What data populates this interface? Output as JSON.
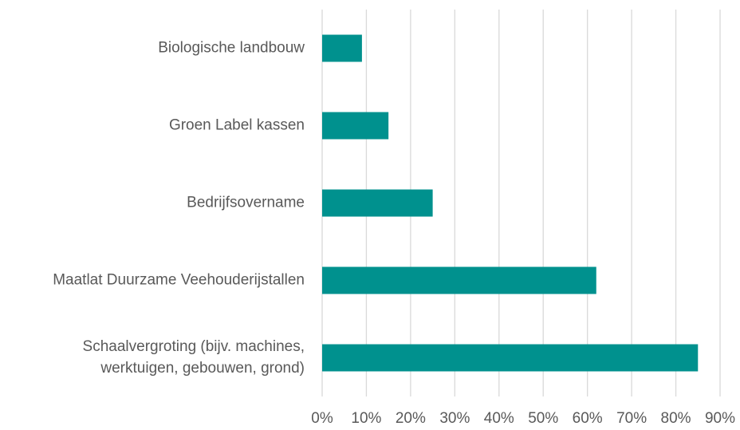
{
  "chart_data": {
    "type": "hbar",
    "categories": [
      "Biologische landbouw",
      "Groen Label kassen",
      "Bedrijfsovername",
      "Maatlat Duurzame Veehouderijstallen",
      [
        "Schaalvergroting (bijv. machines,",
        "werktuigen, gebouwen, grond)"
      ]
    ],
    "values": [
      9,
      15,
      25,
      62,
      85
    ],
    "color": "#00918e",
    "xlim": [
      0,
      90
    ],
    "xticks": [
      {
        "value": 0,
        "label": "0%"
      },
      {
        "value": 10,
        "label": "10%"
      },
      {
        "value": 20,
        "label": "20%"
      },
      {
        "value": 30,
        "label": "30%"
      },
      {
        "value": 40,
        "label": "40%"
      },
      {
        "value": 50,
        "label": "50%"
      },
      {
        "value": 60,
        "label": "60%"
      },
      {
        "value": 70,
        "label": "70%"
      },
      {
        "value": 80,
        "label": "80%"
      },
      {
        "value": 90,
        "label": "90%"
      }
    ],
    "grid": true
  }
}
